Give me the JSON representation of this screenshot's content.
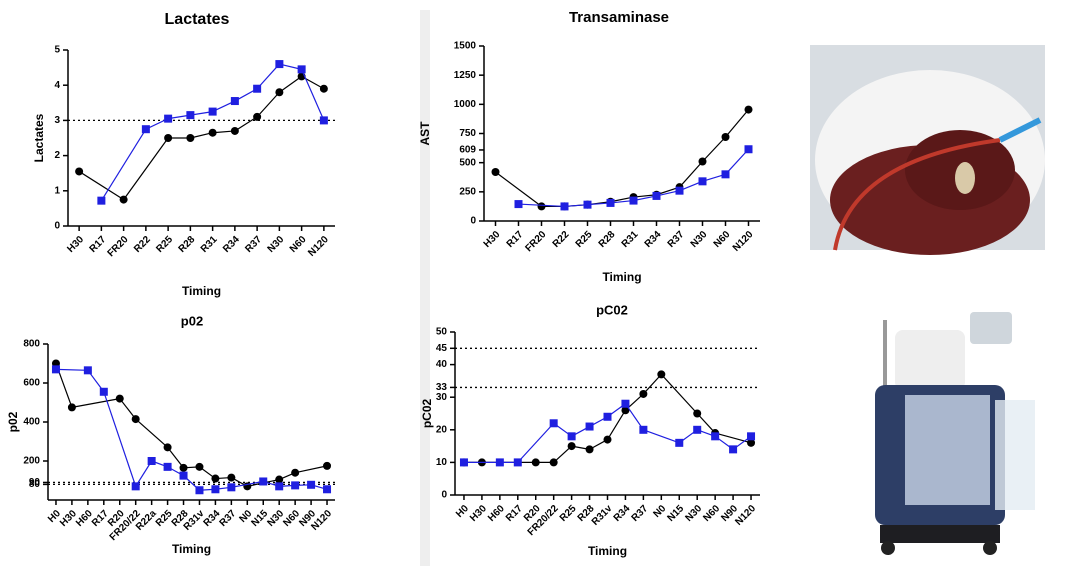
{
  "chart_data": [
    {
      "type": "line",
      "title": "Lactates",
      "x_label": "Timing",
      "y_label": "Lactates",
      "categories": [
        "H30",
        "R17",
        "FR20",
        "R22",
        "R25",
        "R28",
        "R31",
        "R34",
        "R37",
        "N30",
        "N60",
        "N120"
      ],
      "series": [
        {
          "color": "#000000",
          "marker": "circle",
          "values": [
            1.55,
            null,
            0.75,
            null,
            2.5,
            2.5,
            2.65,
            2.7,
            3.1,
            3.8,
            4.25,
            3.9
          ]
        },
        {
          "color": "#1f1fe0",
          "marker": "square",
          "values": [
            null,
            0.72,
            null,
            2.75,
            3.05,
            3.15,
            3.25,
            3.55,
            3.9,
            4.6,
            4.45,
            3.0
          ]
        }
      ],
      "ylim": [
        0,
        5
      ],
      "yticks": [
        0,
        1,
        2,
        3,
        4,
        5
      ],
      "reference_lines": [
        3
      ]
    },
    {
      "type": "line",
      "title": "Transaminase",
      "x_label": "Timing",
      "y_label": "AST",
      "categories": [
        "H30",
        "R17",
        "FR20",
        "R22",
        "R25",
        "R28",
        "R31",
        "R34",
        "R37",
        "N30",
        "N60",
        "N120"
      ],
      "series": [
        {
          "color": "#000000",
          "marker": "circle",
          "values": [
            420,
            null,
            125,
            125,
            140,
            165,
            205,
            225,
            290,
            510,
            720,
            955
          ]
        },
        {
          "color": "#1f1fe0",
          "marker": "square",
          "values": [
            null,
            145,
            null,
            125,
            140,
            155,
            175,
            215,
            260,
            340,
            400,
            615
          ]
        }
      ],
      "ylim": [
        0,
        1500
      ],
      "yticks": [
        0,
        250,
        500,
        609,
        750,
        1000,
        1250,
        1500
      ],
      "reference_lines": []
    },
    {
      "type": "line",
      "title": "p02",
      "x_label": "Timing",
      "y_label": "p02",
      "categories": [
        "H0",
        "H30",
        "H60",
        "R17",
        "R20",
        "FR20/22",
        "R22a",
        "R25",
        "R28",
        "R31v",
        "R34",
        "R37",
        "N0",
        "N15",
        "N30",
        "N60",
        "N90",
        "N120"
      ],
      "series": [
        {
          "color": "#000000",
          "marker": "circle",
          "values": [
            700,
            475,
            null,
            null,
            520,
            415,
            null,
            270,
            165,
            170,
            110,
            115,
            70,
            null,
            105,
            140,
            null,
            175
          ]
        },
        {
          "color": "#1f1fe0",
          "marker": "square",
          "values": [
            670,
            null,
            665,
            555,
            null,
            70,
            200,
            170,
            125,
            50,
            55,
            65,
            null,
            95,
            70,
            75,
            78,
            55
          ]
        }
      ],
      "ylim": [
        0,
        800
      ],
      "yticks": [
        80,
        90,
        200,
        400,
        600,
        800
      ],
      "reference_lines": [
        80,
        90
      ]
    },
    {
      "type": "line",
      "title": "pC02",
      "x_label": "Timing",
      "y_label": "pC02",
      "categories": [
        "H0",
        "H30",
        "H60",
        "R17",
        "R20",
        "FR20/22",
        "R25",
        "R28",
        "R31v",
        "R34",
        "R37",
        "N0",
        "N15",
        "N30",
        "N60",
        "N90",
        "N120"
      ],
      "series": [
        {
          "color": "#000000",
          "marker": "circle",
          "values": [
            10,
            10,
            null,
            null,
            10,
            10,
            15,
            14,
            17,
            26,
            31,
            37,
            null,
            25,
            19,
            null,
            16
          ]
        },
        {
          "color": "#1f1fe0",
          "marker": "square",
          "values": [
            10,
            null,
            10,
            10,
            null,
            22,
            18,
            21,
            24,
            28,
            20,
            null,
            16,
            20,
            18,
            14,
            18
          ]
        }
      ],
      "ylim": [
        0,
        50
      ],
      "yticks": [
        0,
        10,
        20,
        30,
        33,
        40,
        45,
        50
      ],
      "reference_lines": [
        33,
        45
      ]
    }
  ]
}
